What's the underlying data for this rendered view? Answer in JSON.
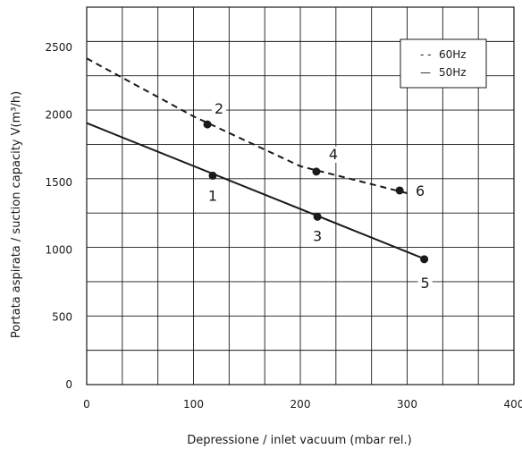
{
  "chart_data": {
    "type": "line",
    "xlabel": "Depressione / inlet vacuum (mbar rel.)",
    "ylabel": "Portata aspirata / suction capacity V(m³/h)",
    "xlim": [
      0,
      400
    ],
    "ylim": [
      0,
      2800
    ],
    "x_ticks": [
      0,
      100,
      200,
      300,
      400
    ],
    "y_ticks": [
      0,
      500,
      1000,
      1500,
      2000,
      2500
    ],
    "grid": true,
    "legend_position": "top-right",
    "series": [
      {
        "name": "60Hz",
        "style": "dashed",
        "x": [
          0,
          100,
          200,
          300
        ],
        "y": [
          2420,
          1990,
          1620,
          1420
        ],
        "points": [
          {
            "label": "2",
            "x": 113,
            "y": 1930
          },
          {
            "label": "4",
            "x": 215,
            "y": 1580
          },
          {
            "label": "6",
            "x": 293,
            "y": 1440
          }
        ]
      },
      {
        "name": "50Hz",
        "style": "solid",
        "x": [
          0,
          317
        ],
        "y": [
          1940,
          930
        ],
        "points": [
          {
            "label": "1",
            "x": 118,
            "y": 1550
          },
          {
            "label": "3",
            "x": 216,
            "y": 1245
          },
          {
            "label": "5",
            "x": 316,
            "y": 930
          }
        ]
      }
    ]
  },
  "legend": {
    "items": [
      {
        "symbol": "- -",
        "label": "60Hz"
      },
      {
        "symbol": "—",
        "label": "50Hz"
      }
    ]
  }
}
